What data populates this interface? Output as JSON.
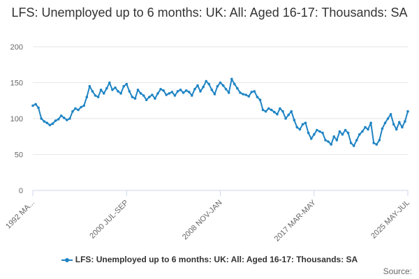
{
  "title": "LFS: Unemployed up to 6 months: UK: All: Aged 16-17: Thousands: SA",
  "source_label": "Source:",
  "colors": {
    "series": "#1f84c4",
    "grid": "#e6e6e6",
    "axis": "#ccd6eb"
  },
  "chart_data": {
    "type": "line",
    "title": "LFS: Unemployed up to 6 months: UK: All: Aged 16-17: Thousands: SA",
    "xlabel": "",
    "ylabel": "",
    "ylim": [
      0,
      200
    ],
    "yticks": [
      0,
      50,
      100,
      150,
      200
    ],
    "grid": true,
    "legend_position": "bottom",
    "x_tick_labels": [
      "1992 MA...",
      "2000 JUL-SEP",
      "2008 NOV-JAN",
      "2017 MAR-MAY",
      "2025 MAY-JUL"
    ],
    "series": [
      {
        "name": "LFS: Unemployed up to 6 months: UK: All: Aged 16-17: Thousands: SA",
        "x_start": "1992 MAR-MAY",
        "x_end": "2025 MAY-JUL",
        "values": [
          118,
          120,
          115,
          100,
          96,
          94,
          91,
          93,
          97,
          99,
          104,
          101,
          98,
          100,
          110,
          114,
          112,
          116,
          118,
          130,
          145,
          138,
          132,
          130,
          140,
          135,
          142,
          150,
          140,
          143,
          138,
          135,
          145,
          148,
          138,
          130,
          128,
          140,
          135,
          132,
          126,
          130,
          133,
          128,
          135,
          141,
          139,
          133,
          135,
          137,
          132,
          138,
          140,
          136,
          139,
          137,
          132,
          141,
          146,
          138,
          144,
          152,
          148,
          140,
          134,
          145,
          150,
          146,
          141,
          136,
          155,
          148,
          142,
          136,
          134,
          133,
          131,
          137,
          138,
          130,
          126,
          112,
          110,
          114,
          112,
          109,
          106,
          114,
          110,
          100,
          105,
          110,
          98,
          88,
          85,
          92,
          94,
          80,
          72,
          78,
          84,
          82,
          80,
          70,
          68,
          64,
          75,
          70,
          82,
          78,
          84,
          80,
          66,
          62,
          70,
          78,
          82,
          88,
          85,
          94,
          66,
          64,
          70,
          86,
          94,
          100,
          106,
          92,
          85,
          95,
          88,
          96,
          110
        ]
      }
    ]
  }
}
